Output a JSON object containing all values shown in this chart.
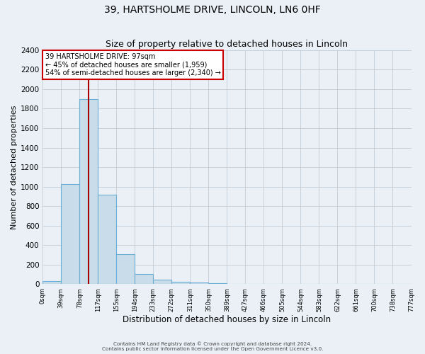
{
  "title": "39, HARTSHOLME DRIVE, LINCOLN, LN6 0HF",
  "subtitle": "Size of property relative to detached houses in Lincoln",
  "xlabel": "Distribution of detached houses by size in Lincoln",
  "ylabel": "Number of detached properties",
  "bin_edges": [
    0,
    39,
    78,
    117,
    156,
    195,
    234,
    273,
    312,
    351,
    390,
    429,
    468,
    507,
    546,
    585,
    624,
    663,
    702,
    741,
    780
  ],
  "bin_counts": [
    30,
    1025,
    1900,
    920,
    310,
    105,
    45,
    25,
    15,
    8,
    0,
    0,
    0,
    0,
    0,
    0,
    0,
    0,
    0,
    0
  ],
  "bar_facecolor": "#c9dcea",
  "bar_edgecolor": "#6aadd5",
  "property_size": 97,
  "vline_color": "#aa0000",
  "ylim": [
    0,
    2400
  ],
  "yticks": [
    0,
    200,
    400,
    600,
    800,
    1000,
    1200,
    1400,
    1600,
    1800,
    2000,
    2200,
    2400
  ],
  "xtick_labels": [
    "0sqm",
    "39sqm",
    "78sqm",
    "117sqm",
    "155sqm",
    "194sqm",
    "233sqm",
    "272sqm",
    "311sqm",
    "350sqm",
    "389sqm",
    "427sqm",
    "466sqm",
    "505sqm",
    "544sqm",
    "583sqm",
    "622sqm",
    "661sqm",
    "700sqm",
    "738sqm",
    "777sqm"
  ],
  "annotation_title": "39 HARTSHOLME DRIVE: 97sqm",
  "annotation_line1": "← 45% of detached houses are smaller (1,959)",
  "annotation_line2": "54% of semi-detached houses are larger (2,340) →",
  "annotation_box_facecolor": "#ffffff",
  "annotation_box_edgecolor": "#cc0000",
  "footer1": "Contains HM Land Registry data © Crown copyright and database right 2024.",
  "footer2": "Contains public sector information licensed under the Open Government Licence v3.0.",
  "bg_color": "#eaf0f6",
  "grid_color": "#c0ccd8",
  "title_fontsize": 10,
  "subtitle_fontsize": 9,
  "xlabel_fontsize": 8.5,
  "ylabel_fontsize": 8
}
